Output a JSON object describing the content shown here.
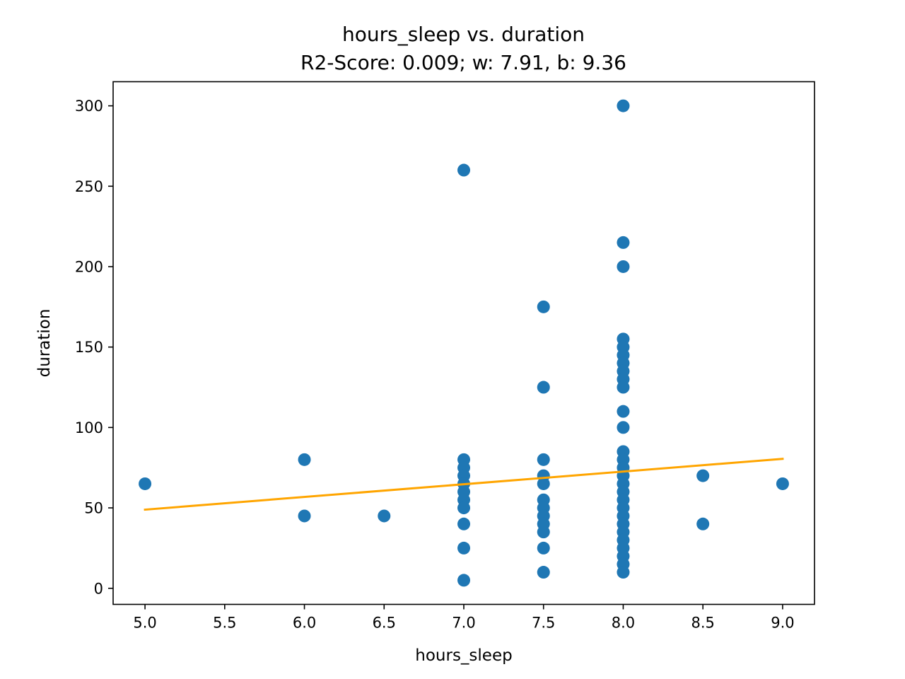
{
  "chart_data": {
    "type": "scatter",
    "title": "hours_sleep vs. duration",
    "subtitle": "R2-Score: 0.009; w: 7.91, b: 9.36",
    "xlabel": "hours_sleep",
    "ylabel": "duration",
    "xlim": [
      4.8,
      9.2
    ],
    "ylim": [
      -10,
      315
    ],
    "xticks": [
      5.0,
      5.5,
      6.0,
      6.5,
      7.0,
      7.5,
      8.0,
      8.5,
      9.0
    ],
    "xtick_labels": [
      "5.0",
      "5.5",
      "6.0",
      "6.5",
      "7.0",
      "7.5",
      "8.0",
      "8.5",
      "9.0"
    ],
    "yticks": [
      0,
      50,
      100,
      150,
      200,
      250,
      300
    ],
    "ytick_labels": [
      "0",
      "50",
      "100",
      "150",
      "200",
      "250",
      "300"
    ],
    "grid": false,
    "points": [
      {
        "x": 5.0,
        "y": 65
      },
      {
        "x": 6.0,
        "y": 80
      },
      {
        "x": 6.0,
        "y": 45
      },
      {
        "x": 6.5,
        "y": 45
      },
      {
        "x": 7.0,
        "y": 260
      },
      {
        "x": 7.0,
        "y": 80
      },
      {
        "x": 7.0,
        "y": 75
      },
      {
        "x": 7.0,
        "y": 70
      },
      {
        "x": 7.0,
        "y": 65
      },
      {
        "x": 7.0,
        "y": 60
      },
      {
        "x": 7.0,
        "y": 55
      },
      {
        "x": 7.0,
        "y": 50
      },
      {
        "x": 7.0,
        "y": 40
      },
      {
        "x": 7.0,
        "y": 25
      },
      {
        "x": 7.0,
        "y": 5
      },
      {
        "x": 7.5,
        "y": 175
      },
      {
        "x": 7.5,
        "y": 125
      },
      {
        "x": 7.5,
        "y": 80
      },
      {
        "x": 7.5,
        "y": 70
      },
      {
        "x": 7.5,
        "y": 65
      },
      {
        "x": 7.5,
        "y": 55
      },
      {
        "x": 7.5,
        "y": 50
      },
      {
        "x": 7.5,
        "y": 45
      },
      {
        "x": 7.5,
        "y": 40
      },
      {
        "x": 7.5,
        "y": 35
      },
      {
        "x": 7.5,
        "y": 25
      },
      {
        "x": 7.5,
        "y": 10
      },
      {
        "x": 8.0,
        "y": 300
      },
      {
        "x": 8.0,
        "y": 215
      },
      {
        "x": 8.0,
        "y": 200
      },
      {
        "x": 8.0,
        "y": 155
      },
      {
        "x": 8.0,
        "y": 150
      },
      {
        "x": 8.0,
        "y": 145
      },
      {
        "x": 8.0,
        "y": 140
      },
      {
        "x": 8.0,
        "y": 135
      },
      {
        "x": 8.0,
        "y": 130
      },
      {
        "x": 8.0,
        "y": 125
      },
      {
        "x": 8.0,
        "y": 110
      },
      {
        "x": 8.0,
        "y": 100
      },
      {
        "x": 8.0,
        "y": 85
      },
      {
        "x": 8.0,
        "y": 80
      },
      {
        "x": 8.0,
        "y": 75
      },
      {
        "x": 8.0,
        "y": 70
      },
      {
        "x": 8.0,
        "y": 65
      },
      {
        "x": 8.0,
        "y": 60
      },
      {
        "x": 8.0,
        "y": 55
      },
      {
        "x": 8.0,
        "y": 50
      },
      {
        "x": 8.0,
        "y": 45
      },
      {
        "x": 8.0,
        "y": 40
      },
      {
        "x": 8.0,
        "y": 35
      },
      {
        "x": 8.0,
        "y": 30
      },
      {
        "x": 8.0,
        "y": 25
      },
      {
        "x": 8.0,
        "y": 20
      },
      {
        "x": 8.0,
        "y": 15
      },
      {
        "x": 8.0,
        "y": 10
      },
      {
        "x": 8.5,
        "y": 70
      },
      {
        "x": 8.5,
        "y": 40
      },
      {
        "x": 9.0,
        "y": 65
      }
    ],
    "point_color": "#1f77b4",
    "fit_line": {
      "x": [
        5.0,
        9.0
      ],
      "y": [
        48.9,
        80.5
      ],
      "color": "#ffa500"
    }
  }
}
